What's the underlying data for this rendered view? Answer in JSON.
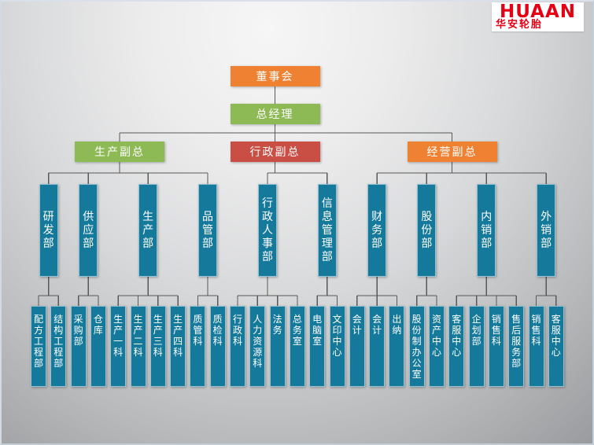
{
  "logo": {
    "title": "HUAAN",
    "subtitle": "华安轮胎",
    "color": "#e60014",
    "background": "#ffffff"
  },
  "colors": {
    "orange": "#ee8132",
    "green": "#8eba55",
    "red": "#c94f44",
    "teal": "#15799c",
    "connector": "#585858",
    "node_text": "#ffffff"
  },
  "chart": {
    "board": {
      "label": "董事会",
      "color": "orange"
    },
    "general_manager": {
      "label": "总经理",
      "color": "green"
    },
    "vps": [
      {
        "label": "生产副总",
        "color": "green",
        "departments": [
          {
            "label": "研发部",
            "sections": [
              "配方工程部",
              "结构工程部"
            ]
          },
          {
            "label": "供应部",
            "sections": [
              "采购部",
              "仓库"
            ]
          },
          {
            "label": "生产部",
            "sections": [
              "生产一科",
              "生产二科",
              "生产三科",
              "生产四科"
            ]
          },
          {
            "label": "品管部",
            "sections": [
              "质管科",
              "质检科"
            ]
          }
        ]
      },
      {
        "label": "行政副总",
        "color": "red",
        "departments": [
          {
            "label": "行政人事部",
            "sections": [
              "行政科",
              "人力资源科",
              "法务",
              "总务室"
            ]
          },
          {
            "label": "信息管理部",
            "sections": [
              "电脑室",
              "文印中心"
            ]
          }
        ]
      },
      {
        "label": "经营副总",
        "color": "orange",
        "departments": [
          {
            "label": "财务部",
            "sections": [
              "会计",
              "会计",
              "出纳"
            ]
          },
          {
            "label": "股份部",
            "sections": [
              "股份制办公室",
              "资产中心"
            ]
          },
          {
            "label": "内销部",
            "sections": [
              "客服中心",
              "企划部",
              "销售科",
              "售后服务部"
            ]
          },
          {
            "label": "外销部",
            "sections": [
              "销售科",
              "客服中心"
            ]
          }
        ]
      }
    ]
  }
}
